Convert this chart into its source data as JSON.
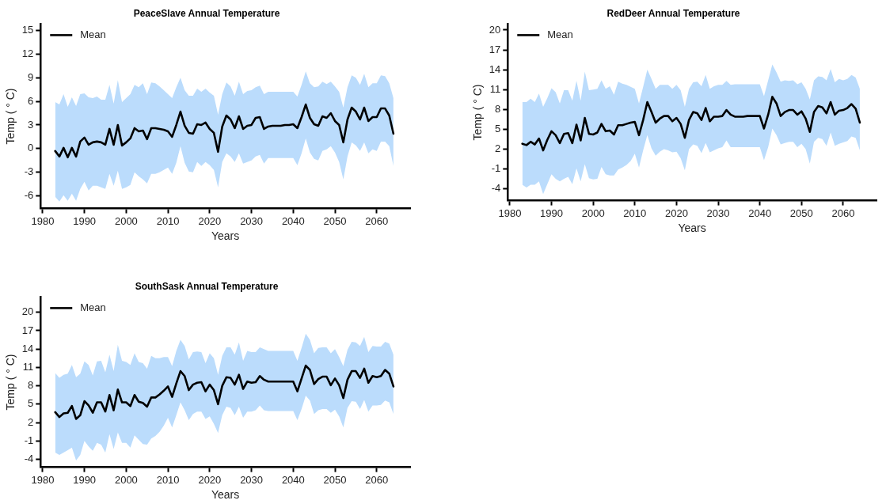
{
  "chart_data": [
    {
      "type": "line",
      "title": "PeaceSlave Annual Temperature",
      "xlabel": "Years",
      "ylabel": "Temp ( ° C)",
      "legend": "top left",
      "grid": false,
      "marker": "none",
      "line_style": "solid",
      "xlim": [
        1979.5,
        2068
      ],
      "xticks": [
        1980,
        1990,
        2000,
        2010,
        2020,
        2030,
        2040,
        2050,
        2060
      ],
      "ylim": [
        -7.6,
        15.8
      ],
      "yticks": [
        -6,
        -3,
        0,
        3,
        6,
        9,
        12,
        15
      ],
      "x": [
        1983,
        1984,
        1985,
        1986,
        1987,
        1988,
        1989,
        1990,
        1991,
        1992,
        1993,
        1994,
        1995,
        1996,
        1997,
        1998,
        1999,
        2000,
        2001,
        2002,
        2003,
        2004,
        2005,
        2006,
        2007,
        2008,
        2009,
        2010,
        2011,
        2012,
        2013,
        2014,
        2015,
        2016,
        2017,
        2018,
        2019,
        2020,
        2021,
        2022,
        2023,
        2024,
        2025,
        2026,
        2027,
        2028,
        2029,
        2030,
        2031,
        2032,
        2033,
        2034,
        2035,
        2036,
        2037,
        2038,
        2039,
        2040,
        2041,
        2042,
        2043,
        2044,
        2045,
        2046,
        2047,
        2048,
        2049,
        2050,
        2051,
        2052,
        2053,
        2054,
        2055,
        2056,
        2057,
        2058,
        2059,
        2060,
        2061,
        2062,
        2063,
        2064
      ],
      "series": [
        {
          "name": "Mean",
          "color": "#000000",
          "values": [
            -0.3,
            -1.0,
            0.1,
            -1.1,
            0.1,
            -1.0,
            0.9,
            1.4,
            0.5,
            0.8,
            0.9,
            0.8,
            0.5,
            2.5,
            0.5,
            3.0,
            0.4,
            0.8,
            1.3,
            2.6,
            2.2,
            2.3,
            1.2,
            2.6,
            2.6,
            2.5,
            2.4,
            2.2,
            1.5,
            3.0,
            4.7,
            2.9,
            2.0,
            1.9,
            3.1,
            3.0,
            3.3,
            2.5,
            2.0,
            -0.4,
            2.8,
            4.2,
            3.7,
            2.6,
            4.1,
            2.5,
            2.9,
            3.0,
            3.9,
            4.0,
            2.5,
            2.8,
            2.9,
            2.9,
            2.9,
            3.0,
            3.0,
            3.1,
            2.6,
            4.0,
            5.6,
            3.9,
            3.1,
            2.9,
            4.1,
            3.9,
            4.5,
            3.5,
            3.0,
            0.8,
            3.7,
            5.2,
            4.7,
            3.7,
            5.2,
            3.5,
            4.0,
            4.0,
            5.1,
            5.1,
            4.2,
            1.9
          ],
          "upper": [
            5.9,
            5.6,
            6.9,
            5.3,
            6.5,
            5.4,
            6.9,
            7.0,
            6.5,
            6.4,
            6.6,
            6.2,
            6.2,
            8.1,
            5.7,
            8.7,
            5.9,
            6.4,
            6.9,
            8.1,
            7.8,
            8.3,
            6.9,
            8.4,
            8.3,
            7.9,
            7.4,
            6.9,
            6.4,
            7.8,
            9.0,
            7.4,
            6.7,
            6.7,
            7.6,
            7.2,
            7.6,
            7.1,
            6.7,
            4.3,
            6.9,
            8.4,
            7.9,
            6.7,
            8.5,
            6.9,
            7.3,
            7.4,
            7.8,
            8.0,
            6.9,
            7.2,
            7.2,
            7.2,
            7.2,
            7.2,
            7.2,
            7.2,
            6.6,
            8.1,
            9.8,
            8.3,
            7.8,
            7.9,
            8.5,
            8.2,
            8.5,
            7.9,
            7.2,
            5.2,
            7.8,
            9.3,
            9.0,
            8.1,
            9.5,
            7.8,
            8.3,
            8.3,
            9.3,
            9.2,
            8.3,
            6.4
          ],
          "lower": [
            -6.1,
            -6.7,
            -5.9,
            -6.6,
            -5.7,
            -6.6,
            -5.1,
            -4.2,
            -5.3,
            -4.7,
            -4.7,
            -4.9,
            -5.1,
            -3.2,
            -4.7,
            -2.8,
            -5.1,
            -4.9,
            -4.6,
            -3.0,
            -3.5,
            -3.9,
            -4.4,
            -3.2,
            -3.2,
            -3.0,
            -2.7,
            -2.4,
            -3.2,
            -1.8,
            0.3,
            -1.8,
            -2.9,
            -3.0,
            -1.7,
            -2.2,
            -1.7,
            -2.1,
            -2.7,
            -4.9,
            -1.7,
            -0.6,
            -1.0,
            -1.7,
            -0.6,
            -1.9,
            -1.7,
            -1.5,
            -1.0,
            -0.8,
            -1.9,
            -1.2,
            -1.2,
            -1.2,
            -1.2,
            -1.2,
            -1.2,
            -1.2,
            -2.1,
            -0.6,
            1.3,
            -0.5,
            -1.3,
            -1.5,
            -0.3,
            -0.1,
            0.3,
            -0.5,
            -1.7,
            -3.9,
            -1.0,
            0.8,
            0.4,
            -0.3,
            0.8,
            -0.6,
            -0.1,
            -0.3,
            0.9,
            0.9,
            0.3,
            -2.2
          ]
        }
      ]
    },
    {
      "type": "line",
      "title": "RedDeer Annual Temperature",
      "xlabel": "Years",
      "ylabel": "Temp ( ° C)",
      "legend": "top left",
      "grid": false,
      "marker": "none",
      "line_style": "solid",
      "xlim": [
        1979.5,
        2068
      ],
      "xticks": [
        1980,
        1990,
        2000,
        2010,
        2020,
        2030,
        2040,
        2050,
        2060
      ],
      "ylim": [
        -5.8,
        20.9
      ],
      "yticks": [
        -4,
        -1,
        2,
        5,
        8,
        11,
        14,
        17,
        20
      ],
      "x": [
        1983,
        1984,
        1985,
        1986,
        1987,
        1988,
        1989,
        1990,
        1991,
        1992,
        1993,
        1994,
        1995,
        1996,
        1997,
        1998,
        1999,
        2000,
        2001,
        2002,
        2003,
        2004,
        2005,
        2006,
        2007,
        2008,
        2009,
        2010,
        2011,
        2012,
        2013,
        2014,
        2015,
        2016,
        2017,
        2018,
        2019,
        2020,
        2021,
        2022,
        2023,
        2024,
        2025,
        2026,
        2027,
        2028,
        2029,
        2030,
        2031,
        2032,
        2033,
        2034,
        2035,
        2036,
        2037,
        2038,
        2039,
        2040,
        2041,
        2042,
        2043,
        2044,
        2045,
        2046,
        2047,
        2048,
        2049,
        2050,
        2051,
        2052,
        2053,
        2054,
        2055,
        2056,
        2057,
        2058,
        2059,
        2060,
        2061,
        2062,
        2063,
        2064
      ],
      "series": [
        {
          "name": "Mean",
          "color": "#000000",
          "values": [
            2.8,
            2.6,
            3.1,
            2.7,
            3.6,
            1.8,
            3.4,
            4.7,
            4.1,
            2.9,
            4.3,
            4.4,
            2.9,
            5.7,
            3.3,
            6.7,
            4.3,
            4.2,
            4.5,
            5.8,
            4.7,
            4.8,
            4.2,
            5.6,
            5.6,
            5.8,
            6.0,
            6.1,
            4.1,
            6.4,
            9.1,
            7.6,
            6.0,
            6.6,
            7.0,
            7.0,
            6.2,
            6.7,
            5.8,
            3.7,
            6.4,
            7.6,
            7.4,
            6.4,
            8.2,
            6.2,
            6.9,
            6.9,
            7.0,
            7.9,
            7.2,
            6.9,
            6.9,
            6.9,
            7.0,
            7.0,
            7.0,
            7.0,
            5.1,
            7.2,
            9.9,
            8.9,
            7.0,
            7.6,
            7.9,
            7.9,
            7.2,
            7.7,
            6.6,
            4.6,
            7.6,
            8.5,
            8.3,
            7.4,
            9.1,
            7.2,
            7.8,
            7.9,
            8.2,
            8.8,
            8.1,
            6.0
          ],
          "upper": [
            9.1,
            9.1,
            9.6,
            9.1,
            10.4,
            8.4,
            9.7,
            11.2,
            10.6,
            8.9,
            10.9,
            10.9,
            9.3,
            12.3,
            9.3,
            13.7,
            10.9,
            11.0,
            11.1,
            12.4,
            11.1,
            11.5,
            10.2,
            12.2,
            11.9,
            11.7,
            11.4,
            11.1,
            8.9,
            11.4,
            14.0,
            12.6,
            11.1,
            11.7,
            11.7,
            11.7,
            11.1,
            11.7,
            10.9,
            8.4,
            11.1,
            12.1,
            12.2,
            11.5,
            13.2,
            11.1,
            11.5,
            11.7,
            11.7,
            12.3,
            11.7,
            11.8,
            11.8,
            11.8,
            11.8,
            11.8,
            11.8,
            11.8,
            10.0,
            12.4,
            14.8,
            13.6,
            12.2,
            12.4,
            12.3,
            12.4,
            11.8,
            12.1,
            11.1,
            9.5,
            12.4,
            13.0,
            12.9,
            12.4,
            14.1,
            12.1,
            12.6,
            12.4,
            12.6,
            13.2,
            12.8,
            11.1
          ],
          "lower": [
            -3.4,
            -3.8,
            -3.4,
            -3.4,
            -2.9,
            -4.8,
            -3.3,
            -1.8,
            -2.5,
            -2.9,
            -2.5,
            -2.2,
            -3.3,
            -0.9,
            -2.9,
            -0.3,
            -2.4,
            -2.6,
            -2.5,
            -0.7,
            -1.8,
            -2.0,
            -2.0,
            -1.1,
            -0.8,
            -0.4,
            0.2,
            1.3,
            -0.8,
            1.8,
            4.1,
            2.1,
            1.0,
            1.6,
            2.0,
            1.8,
            1.5,
            1.6,
            0.6,
            -1.2,
            2.0,
            2.7,
            2.5,
            1.4,
            2.9,
            1.5,
            1.8,
            2.1,
            2.3,
            3.3,
            2.3,
            2.3,
            2.3,
            2.3,
            2.3,
            2.3,
            2.3,
            2.3,
            0.3,
            2.3,
            5.1,
            4.1,
            2.7,
            2.9,
            3.1,
            3.1,
            2.3,
            2.8,
            2.0,
            -0.2,
            3.1,
            3.7,
            3.5,
            2.5,
            4.5,
            2.5,
            2.8,
            3.0,
            3.2,
            3.9,
            3.7,
            1.8
          ]
        }
      ]
    },
    {
      "type": "line",
      "title": "SouthSask Annual Temperature",
      "xlabel": "Years",
      "ylabel": "Temp ( ° C)",
      "legend": "top left",
      "grid": false,
      "marker": "none",
      "line_style": "solid",
      "xlim": [
        1979.5,
        2068
      ],
      "xticks": [
        1980,
        1990,
        2000,
        2010,
        2020,
        2030,
        2040,
        2050,
        2060
      ],
      "ylim": [
        -5.3,
        22.5
      ],
      "yticks": [
        -4,
        -1,
        2,
        5,
        8,
        11,
        14,
        17,
        20
      ],
      "x": [
        1983,
        1984,
        1985,
        1986,
        1987,
        1988,
        1989,
        1990,
        1991,
        1992,
        1993,
        1994,
        1995,
        1996,
        1997,
        1998,
        1999,
        2000,
        2001,
        2002,
        2003,
        2004,
        2005,
        2006,
        2007,
        2008,
        2009,
        2010,
        2011,
        2012,
        2013,
        2014,
        2015,
        2016,
        2017,
        2018,
        2019,
        2020,
        2021,
        2022,
        2023,
        2024,
        2025,
        2026,
        2027,
        2028,
        2029,
        2030,
        2031,
        2032,
        2033,
        2034,
        2035,
        2036,
        2037,
        2038,
        2039,
        2040,
        2041,
        2042,
        2043,
        2044,
        2045,
        2046,
        2047,
        2048,
        2049,
        2050,
        2051,
        2052,
        2053,
        2054,
        2055,
        2056,
        2057,
        2058,
        2059,
        2060,
        2061,
        2062,
        2063,
        2064
      ],
      "series": [
        {
          "name": "Mean",
          "color": "#000000",
          "values": [
            3.7,
            2.9,
            3.5,
            3.6,
            4.7,
            2.6,
            3.2,
            5.5,
            4.8,
            3.6,
            5.3,
            5.3,
            3.8,
            6.5,
            4.0,
            7.4,
            5.3,
            5.3,
            4.7,
            6.5,
            5.4,
            5.2,
            4.6,
            6.1,
            6.1,
            6.6,
            7.2,
            7.9,
            6.2,
            8.4,
            10.4,
            9.6,
            7.3,
            8.2,
            8.5,
            8.6,
            7.1,
            8.2,
            7.3,
            5.0,
            8.0,
            9.4,
            9.3,
            8.2,
            9.8,
            7.5,
            8.7,
            8.5,
            8.6,
            9.6,
            9.0,
            8.7,
            8.7,
            8.7,
            8.7,
            8.7,
            8.7,
            8.7,
            7.1,
            9.2,
            11.3,
            10.6,
            8.3,
            9.1,
            9.5,
            9.5,
            8.1,
            9.2,
            8.1,
            6.0,
            9.0,
            10.4,
            10.4,
            9.3,
            10.8,
            8.5,
            9.6,
            9.4,
            9.6,
            10.6,
            10.0,
            7.9
          ],
          "upper": [
            10.1,
            9.3,
            9.8,
            10.0,
            11.4,
            9.4,
            10.0,
            12.0,
            11.4,
            9.7,
            12.0,
            12.1,
            10.2,
            13.1,
            10.4,
            14.7,
            12.1,
            11.9,
            11.4,
            13.3,
            11.9,
            11.7,
            10.8,
            12.9,
            12.5,
            12.5,
            12.7,
            12.7,
            11.2,
            13.7,
            15.5,
            14.5,
            12.3,
            13.5,
            13.6,
            13.5,
            11.7,
            13.3,
            12.5,
            9.8,
            12.9,
            14.3,
            14.3,
            13.1,
            15.1,
            12.1,
            13.7,
            13.5,
            13.5,
            14.3,
            14.0,
            13.7,
            13.7,
            13.7,
            13.7,
            13.7,
            13.7,
            13.7,
            12.1,
            14.2,
            16.5,
            15.5,
            13.3,
            14.2,
            14.3,
            14.3,
            13.3,
            14.0,
            12.7,
            11.2,
            13.9,
            15.2,
            15.1,
            14.5,
            16.0,
            13.5,
            14.5,
            14.4,
            14.4,
            15.2,
            14.9,
            13.1
          ],
          "lower": [
            -2.9,
            -3.3,
            -2.9,
            -2.5,
            -2.1,
            -4.2,
            -3.3,
            -1.0,
            -1.9,
            -2.6,
            -1.3,
            -1.6,
            -2.9,
            0.1,
            -2.3,
            0.4,
            -1.3,
            -1.3,
            -2.1,
            -0.1,
            -0.8,
            -1.5,
            -1.6,
            -0.6,
            -0.2,
            0.5,
            1.5,
            2.8,
            1.2,
            3.2,
            5.3,
            4.0,
            2.4,
            3.4,
            3.8,
            3.8,
            2.6,
            3.0,
            1.8,
            0.3,
            3.2,
            4.6,
            4.4,
            3.2,
            4.6,
            2.8,
            3.8,
            3.8,
            4.0,
            4.8,
            4.0,
            3.9,
            3.9,
            3.9,
            3.9,
            3.9,
            3.9,
            3.9,
            2.4,
            4.2,
            6.4,
            5.6,
            3.4,
            4.0,
            4.2,
            4.2,
            3.6,
            4.1,
            3.0,
            1.2,
            4.4,
            5.5,
            5.4,
            4.2,
            5.7,
            3.8,
            4.8,
            4.8,
            4.9,
            5.6,
            5.3,
            3.4
          ]
        }
      ]
    }
  ]
}
